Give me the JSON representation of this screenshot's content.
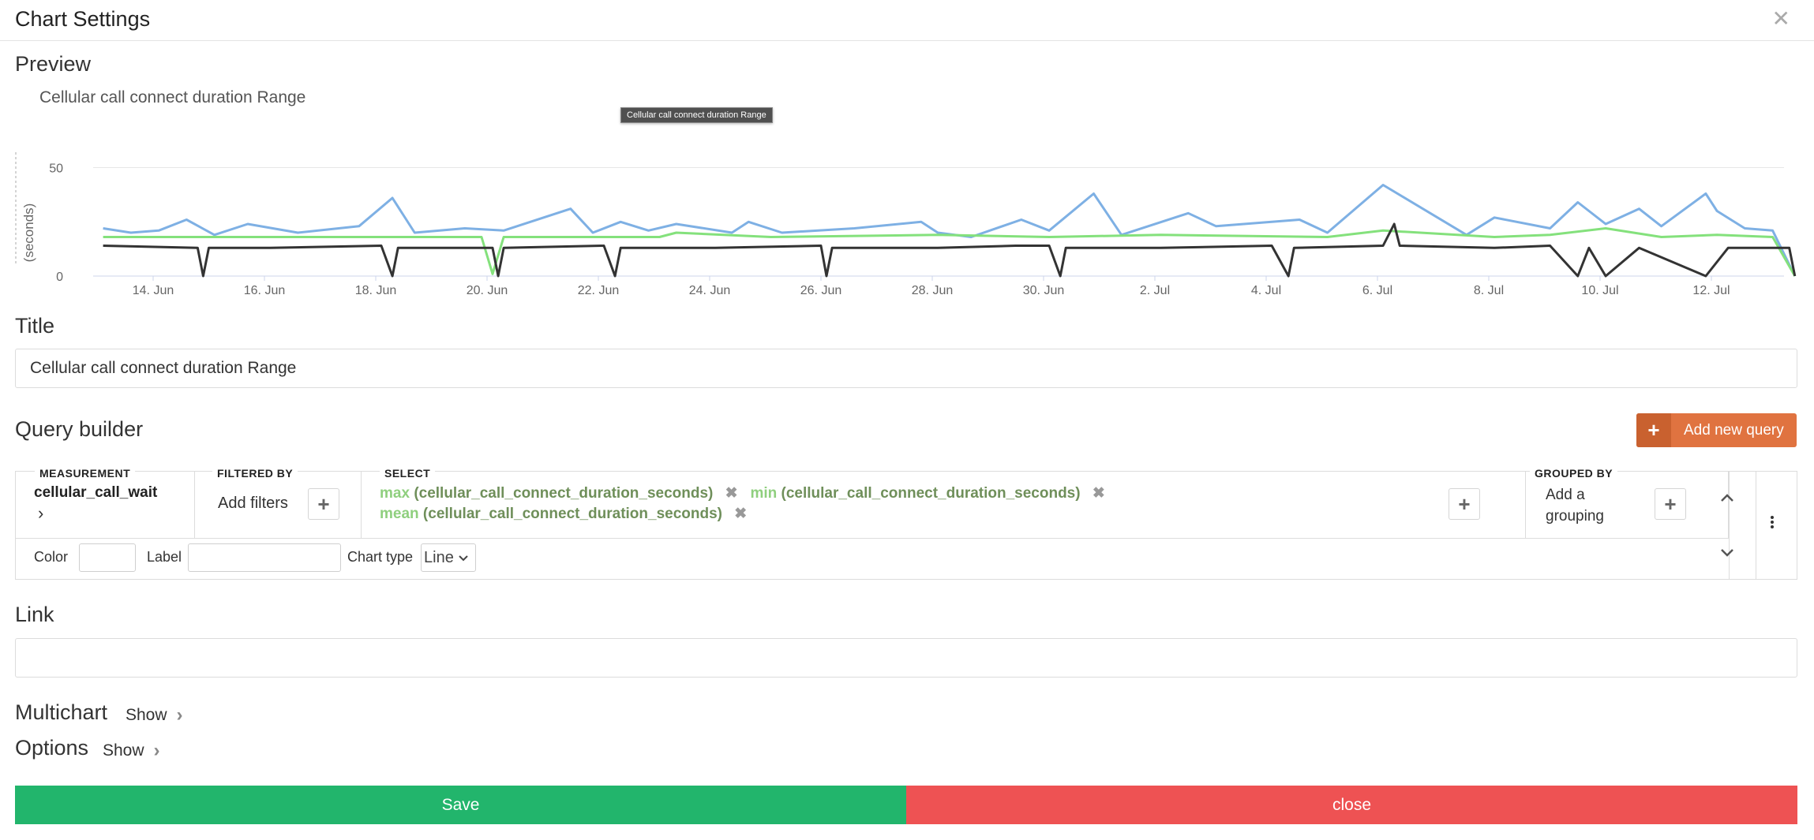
{
  "dialog": {
    "title": "Chart Settings",
    "close_icon": "close-icon"
  },
  "preview": {
    "heading": "Preview",
    "chart_title": "Cellular call connect duration Range",
    "tooltip": "Cellular call connect duration Range"
  },
  "chart_data": {
    "type": "line",
    "title": "Cellular call connect duration Range",
    "ylabel": "(seconds)",
    "xlabel": "",
    "ylim": [
      0,
      60
    ],
    "yticks": [
      "0",
      "50"
    ],
    "x_tick_labels": [
      "14. Jun",
      "16. Jun",
      "18. Jun",
      "20. Jun",
      "22. Jun",
      "24. Jun",
      "26. Jun",
      "28. Jun",
      "30. Jun",
      "2. Jul",
      "4. Jul",
      "6. Jul",
      "8. Jul",
      "10. Jul",
      "12. Jul"
    ],
    "x_range_days": [
      0,
      30.4
    ],
    "grid": true,
    "series": [
      {
        "color": "#7eb0e4",
        "points": [
          [
            0,
            22
          ],
          [
            0.5,
            20
          ],
          [
            1,
            21
          ],
          [
            1.5,
            26
          ],
          [
            2,
            19
          ],
          [
            2.6,
            24
          ],
          [
            3.5,
            20
          ],
          [
            4.6,
            23
          ],
          [
            5.2,
            36
          ],
          [
            5.6,
            20
          ],
          [
            6.5,
            22
          ],
          [
            7.2,
            21
          ],
          [
            8.4,
            31
          ],
          [
            8.8,
            20
          ],
          [
            9.3,
            25
          ],
          [
            9.8,
            21
          ],
          [
            10.3,
            24
          ],
          [
            11.3,
            20
          ],
          [
            11.6,
            25
          ],
          [
            12.2,
            20
          ],
          [
            13.5,
            22
          ],
          [
            14.7,
            25
          ],
          [
            15,
            20
          ],
          [
            15.6,
            18
          ],
          [
            16.5,
            26
          ],
          [
            17,
            21
          ],
          [
            17.8,
            38
          ],
          [
            18.3,
            19
          ],
          [
            19.5,
            29
          ],
          [
            20,
            23
          ],
          [
            21.5,
            26
          ],
          [
            22,
            20
          ],
          [
            23,
            42
          ],
          [
            24.5,
            19
          ],
          [
            25,
            27
          ],
          [
            26,
            22
          ],
          [
            26.5,
            34
          ],
          [
            27,
            24
          ],
          [
            27.6,
            31
          ],
          [
            28,
            23
          ],
          [
            28.8,
            38
          ],
          [
            29,
            30
          ],
          [
            29.5,
            22
          ],
          [
            30,
            21
          ],
          [
            30.4,
            0
          ]
        ]
      },
      {
        "color": "#84e17c",
        "points": [
          [
            0,
            18
          ],
          [
            2,
            18
          ],
          [
            5,
            18
          ],
          [
            6.8,
            18
          ],
          [
            7,
            1
          ],
          [
            7.2,
            18
          ],
          [
            10,
            18
          ],
          [
            10.3,
            20
          ],
          [
            12,
            18
          ],
          [
            15,
            19
          ],
          [
            17,
            18
          ],
          [
            19,
            19
          ],
          [
            22,
            18
          ],
          [
            23,
            21
          ],
          [
            25,
            18
          ],
          [
            26,
            19
          ],
          [
            27,
            22
          ],
          [
            28,
            18
          ],
          [
            29,
            19
          ],
          [
            30,
            18
          ],
          [
            30.4,
            0
          ]
        ]
      },
      {
        "color": "#333333",
        "points": [
          [
            0,
            14
          ],
          [
            1.7,
            13
          ],
          [
            1.8,
            0
          ],
          [
            1.9,
            13
          ],
          [
            3,
            13
          ],
          [
            5,
            14
          ],
          [
            5.2,
            0
          ],
          [
            5.3,
            13
          ],
          [
            7,
            13
          ],
          [
            7.1,
            0
          ],
          [
            7.2,
            13
          ],
          [
            9,
            14
          ],
          [
            9.2,
            0
          ],
          [
            9.3,
            13
          ],
          [
            11,
            13
          ],
          [
            12.9,
            14
          ],
          [
            13,
            0
          ],
          [
            13.1,
            13
          ],
          [
            15,
            13
          ],
          [
            16.4,
            14
          ],
          [
            17,
            14
          ],
          [
            17.2,
            0
          ],
          [
            17.3,
            13
          ],
          [
            19,
            13
          ],
          [
            21,
            14
          ],
          [
            21.3,
            0
          ],
          [
            21.4,
            13
          ],
          [
            23,
            14
          ],
          [
            23.2,
            24
          ],
          [
            23.3,
            14
          ],
          [
            25,
            13
          ],
          [
            26,
            14
          ],
          [
            26.5,
            0
          ],
          [
            26.7,
            13
          ],
          [
            27,
            0
          ],
          [
            27.6,
            13
          ],
          [
            28.8,
            0
          ],
          [
            29.2,
            13
          ],
          [
            30.3,
            13
          ],
          [
            30.4,
            0
          ]
        ]
      }
    ]
  },
  "title_section": {
    "heading": "Title",
    "value": "Cellular call connect duration Range"
  },
  "query_builder": {
    "heading": "Query builder",
    "add_button_label": "Add new query",
    "measurement": {
      "header": "MEASUREMENT",
      "value": "cellular_call_wait",
      "chevron": "›"
    },
    "filtered_by": {
      "header": "FILTERED BY",
      "placeholder": "Add filters"
    },
    "select": {
      "header": "SELECT",
      "items": [
        {
          "agg": "max",
          "field": "(cellular_call_connect_duration_seconds)"
        },
        {
          "agg": "min",
          "field": "(cellular_call_connect_duration_seconds)"
        },
        {
          "agg": "mean",
          "field": "(cellular_call_connect_duration_seconds)"
        }
      ]
    },
    "grouped_by": {
      "header": "GROUPED BY",
      "placeholder_line1": "Add a",
      "placeholder_line2": "grouping"
    },
    "color_label": "Color",
    "label_label": "Label",
    "chart_type_label": "Chart type",
    "chart_type_value": "Line"
  },
  "link_section": {
    "heading": "Link",
    "value": ""
  },
  "multichart": {
    "heading": "Multichart",
    "show_label": "Show"
  },
  "options": {
    "heading": "Options",
    "show_label": "Show"
  },
  "footer": {
    "save_label": "Save",
    "close_label": "close"
  }
}
